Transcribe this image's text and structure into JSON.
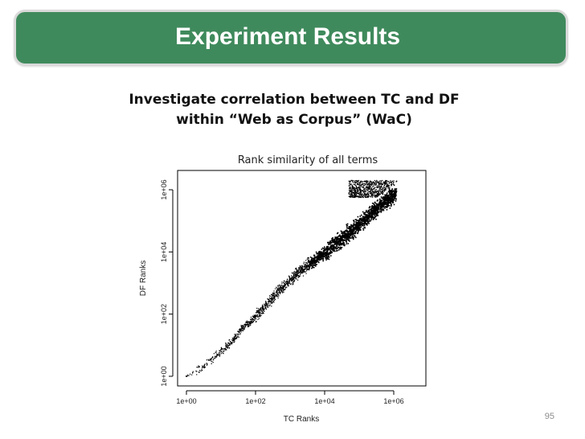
{
  "slide": {
    "title": "Experiment Results",
    "subtitle_lines": [
      "Investigate correlation between TC and DF",
      "within “Web as Corpus” (WaC)"
    ],
    "page_number": "95",
    "title_bar_color": "#3f8a5c"
  },
  "chart_data": {
    "type": "scatter",
    "title": "Rank similarity of all terms",
    "xlabel": "TC Ranks",
    "ylabel": "DF Ranks",
    "x_scale": "log",
    "y_scale": "log",
    "xlim": [
      1,
      2000000
    ],
    "ylim": [
      1,
      2000000
    ],
    "x_ticks": [
      {
        "value": 1,
        "label": "1e+00"
      },
      {
        "value": 100,
        "label": "1e+02"
      },
      {
        "value": 10000,
        "label": "1e+04"
      },
      {
        "value": 1000000,
        "label": "1e+06"
      }
    ],
    "y_ticks": [
      {
        "value": 1,
        "label": "1e+00"
      },
      {
        "value": 100,
        "label": "1e+02"
      },
      {
        "value": 10000,
        "label": "1e+04"
      },
      {
        "value": 1000000,
        "label": "1e+06"
      }
    ],
    "grid": false,
    "legend": "none",
    "point_color": "#000000",
    "series": [
      {
        "points": [
          [
            1,
            1
          ],
          [
            3,
            2
          ],
          [
            8,
            5
          ],
          [
            20,
            12
          ],
          [
            40,
            35
          ],
          [
            100,
            80
          ],
          [
            250,
            260
          ],
          [
            600,
            700
          ],
          [
            1500,
            1800
          ],
          [
            4000,
            4500
          ],
          [
            10000,
            9000
          ],
          [
            30000,
            25000
          ],
          [
            80000,
            60000
          ],
          [
            200000,
            150000
          ],
          [
            500000,
            380000
          ],
          [
            1000000,
            700000
          ],
          [
            1200000,
            900000
          ]
        ]
      }
    ]
  }
}
